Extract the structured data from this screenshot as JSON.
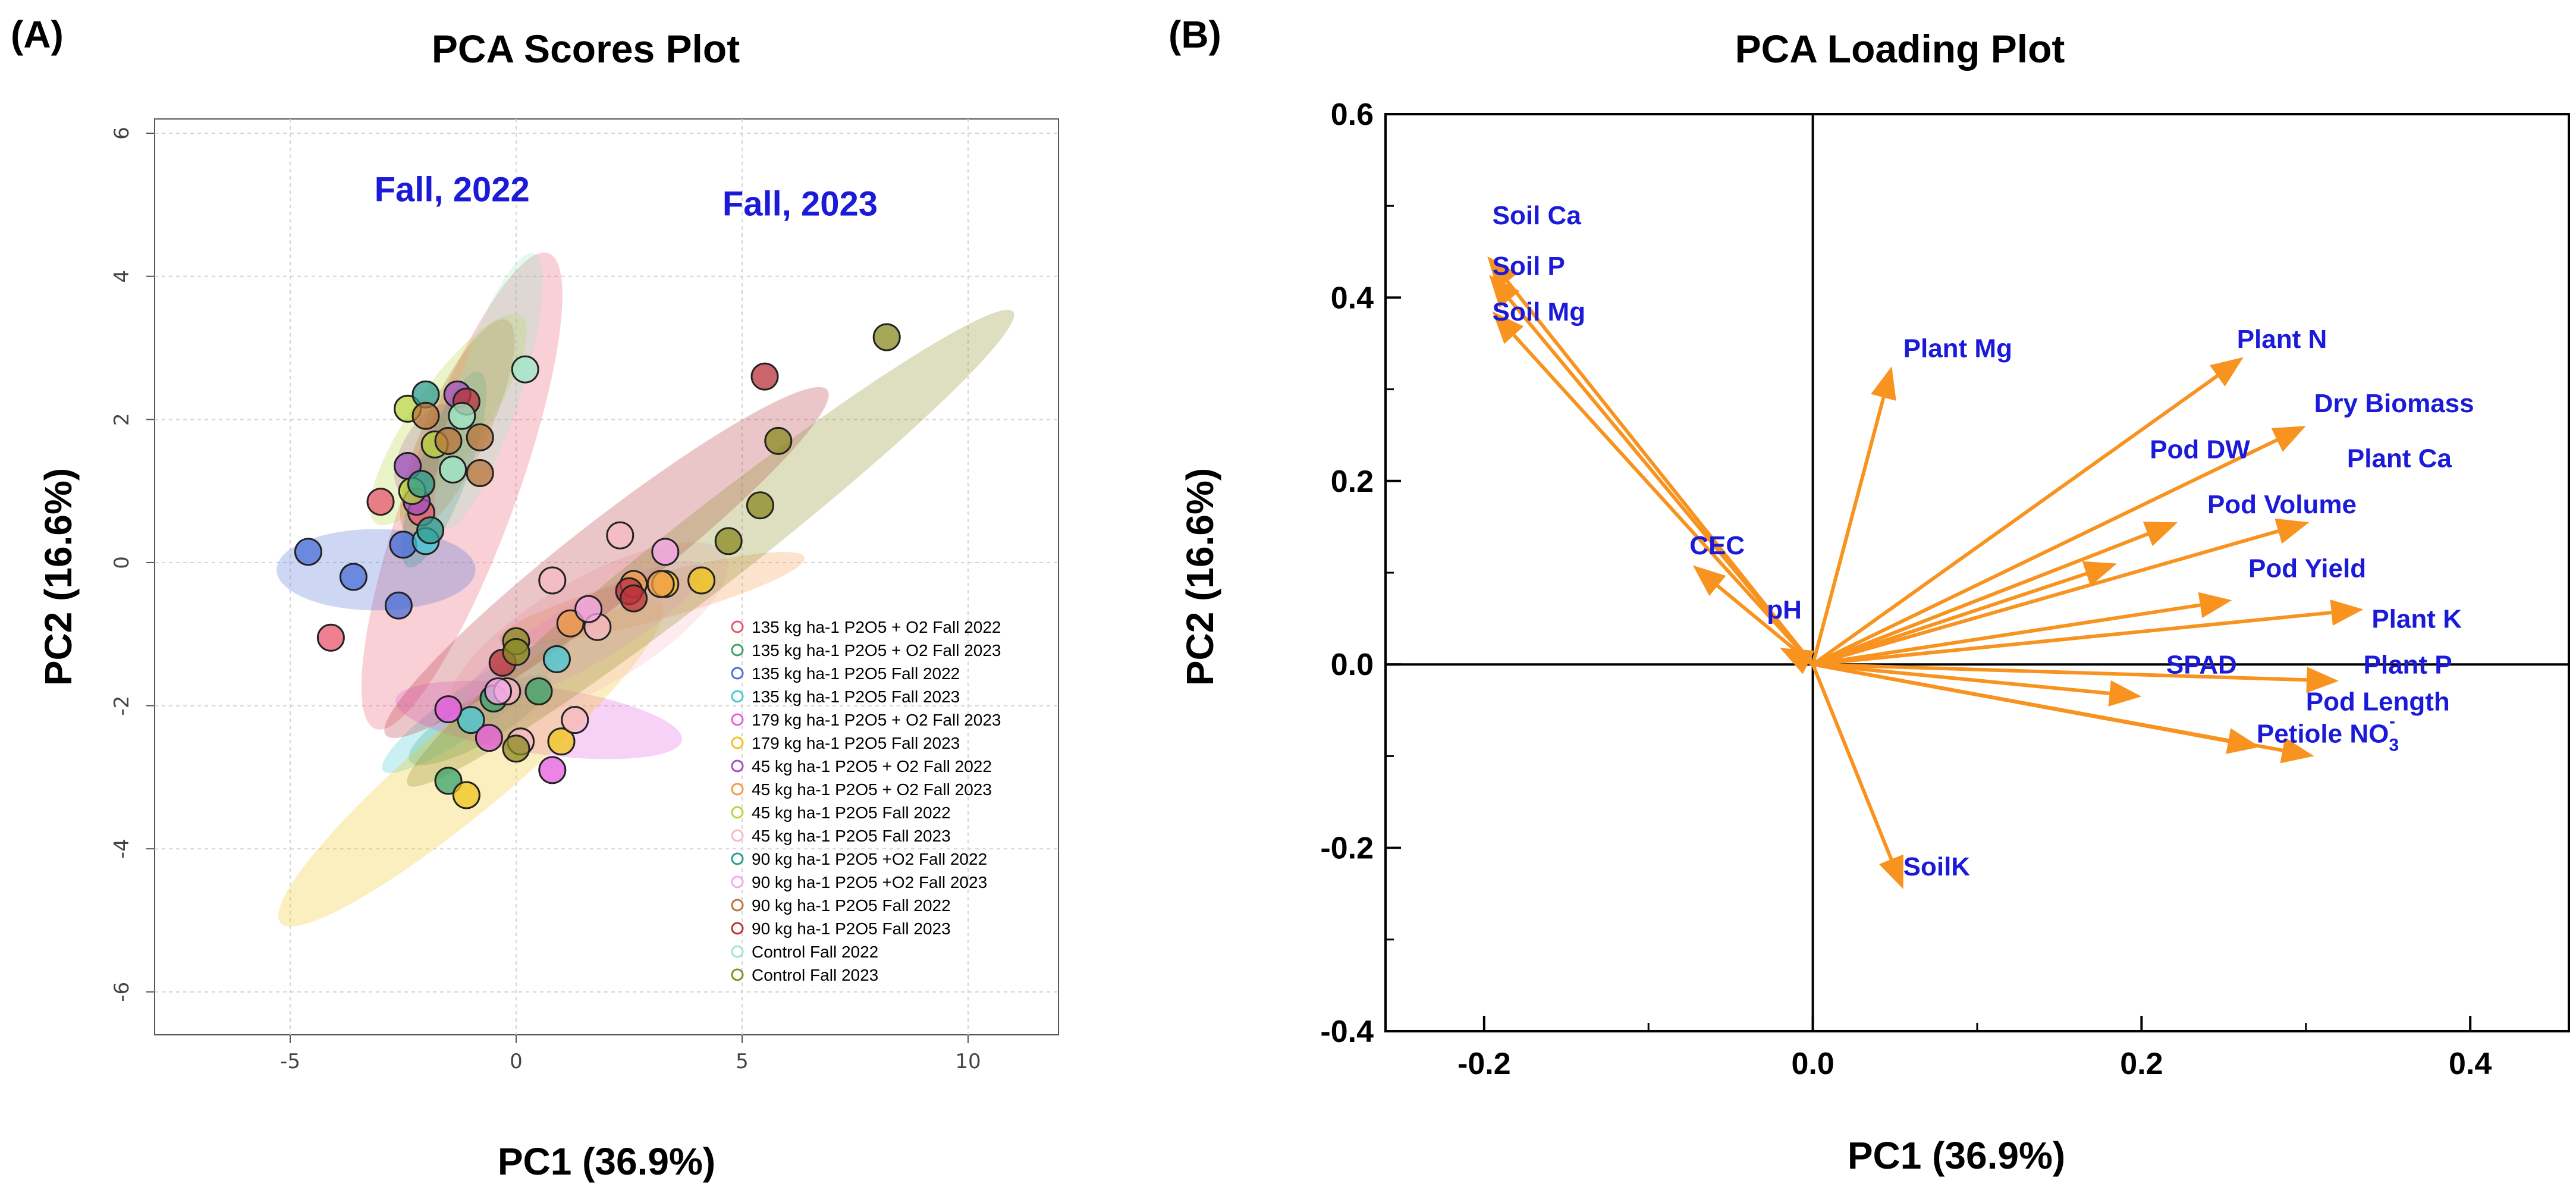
{
  "chart_data": [
    {
      "panel": "(A)",
      "type": "scatter",
      "title": "PCA Scores Plot",
      "xlabel": "PC1 (36.9%)",
      "ylabel": "PC2 (16.6%)",
      "xlim": [
        -8,
        12
      ],
      "ylim": [
        -6.6,
        6.2
      ],
      "xticks": [
        -5,
        0,
        5,
        10
      ],
      "yticks": [
        -6,
        -4,
        -2,
        0,
        2,
        4,
        6
      ],
      "grid": true,
      "annotations": [
        {
          "text": "Fall, 2022",
          "x": 0.3,
          "y": 5.05
        },
        {
          "text": "Fall, 2023",
          "x": 8.0,
          "y": 4.85
        }
      ],
      "legend_position": "bottom-right",
      "series": [
        {
          "name": "135 kg ha-1 P2O5 + O2 Fall 2022",
          "color": "#e8556d",
          "ellipse": {
            "cx": -1.2,
            "cy": 1.0,
            "rx": 5.6,
            "ry": 1.2,
            "angle": 70
          },
          "points": [
            [
              -3.0,
              0.85
            ],
            [
              -4.1,
              -1.05
            ],
            [
              -2.1,
              0.7
            ]
          ]
        },
        {
          "name": "135 kg ha-1 P2O5 + O2 Fall 2023",
          "color": "#3aa36b",
          "ellipse": {
            "cx": -0.8,
            "cy": -2.2,
            "rx": 1.8,
            "ry": 0.5,
            "angle": 30
          },
          "points": [
            [
              -1.5,
              -3.05
            ],
            [
              0.5,
              -1.8
            ],
            [
              -0.5,
              -1.9
            ]
          ]
        },
        {
          "name": "135 kg ha-1 P2O5 Fall 2022",
          "color": "#4a6fd8",
          "ellipse": {
            "cx": -3.1,
            "cy": -0.1,
            "rx": 2.2,
            "ry": 0.9,
            "angle": 0
          },
          "points": [
            [
              -4.6,
              0.15
            ],
            [
              -3.6,
              -0.2
            ],
            [
              -2.6,
              -0.6
            ],
            [
              -2.5,
              0.25
            ]
          ]
        },
        {
          "name": "135 kg ha-1 P2O5 Fall 2023",
          "color": "#46c8d8",
          "ellipse": {
            "cx": -0.9,
            "cy": -2.0,
            "rx": 2.5,
            "ry": 0.5,
            "angle": 35
          },
          "points": [
            [
              -1.0,
              -2.2
            ],
            [
              0.9,
              -1.35
            ],
            [
              -2.0,
              0.3
            ]
          ]
        },
        {
          "name": "179 kg ha-1 P2O5 + O2 Fall 2023",
          "color": "#e65be0",
          "ellipse": {
            "cx": 0.5,
            "cy": -2.2,
            "rx": 3.2,
            "ry": 0.75,
            "angle": -8
          },
          "points": [
            [
              -1.5,
              -2.05
            ],
            [
              0.8,
              -2.9
            ],
            [
              -0.6,
              -2.45
            ]
          ]
        },
        {
          "name": "179 kg ha-1 P2O5 Fall 2023",
          "color": "#f0c419",
          "ellipse": {
            "cx": -1.0,
            "cy": -2.8,
            "rx": 5.5,
            "ry": 1.0,
            "angle": 40
          },
          "points": [
            [
              -1.1,
              -3.25
            ],
            [
              3.3,
              -0.3
            ],
            [
              4.1,
              -0.25
            ],
            [
              1.0,
              -2.5
            ]
          ]
        },
        {
          "name": "45 kg ha-1 P2O5 + O2 Fall 2022",
          "color": "#a24fc2",
          "ellipse": {
            "cx": -2.0,
            "cy": 1.6,
            "rx": 1.1,
            "ry": 0.5,
            "angle": 60
          },
          "points": [
            [
              -1.3,
              2.35
            ],
            [
              -2.4,
              1.35
            ],
            [
              -2.2,
              0.85
            ]
          ]
        },
        {
          "name": "45 kg ha-1 P2O5 + O2 Fall 2023",
          "color": "#f29b4a",
          "ellipse": {
            "cx": 3.0,
            "cy": -0.5,
            "rx": 3.5,
            "ry": 0.5,
            "angle": 15
          },
          "points": [
            [
              1.2,
              -0.85
            ],
            [
              2.6,
              -0.3
            ],
            [
              3.2,
              -0.3
            ]
          ]
        },
        {
          "name": "45 kg ha-1 P2O5 Fall 2022",
          "color": "#b8d43c",
          "ellipse": {
            "cx": -1.5,
            "cy": 2.0,
            "rx": 2.8,
            "ry": 0.8,
            "angle": 55
          },
          "points": [
            [
              -2.4,
              2.15
            ],
            [
              -1.8,
              1.65
            ],
            [
              -2.3,
              1.0
            ]
          ]
        },
        {
          "name": "45 kg ha-1 P2O5 Fall 2023",
          "color": "#f7b8c4",
          "ellipse": {
            "cx": 1.6,
            "cy": -1.0,
            "rx": 3.5,
            "ry": 1.2,
            "angle": 30
          },
          "points": [
            [
              2.3,
              0.38
            ],
            [
              0.8,
              -0.25
            ],
            [
              1.8,
              -0.9
            ],
            [
              1.3,
              -2.2
            ],
            [
              -0.2,
              -1.8
            ],
            [
              0.1,
              -2.5
            ]
          ]
        },
        {
          "name": "90 kg ha-1 P2O5 +O2 Fall 2022",
          "color": "#2d9c8e",
          "ellipse": {
            "cx": -1.6,
            "cy": 1.3,
            "rx": 2.3,
            "ry": 0.55,
            "angle": 70
          },
          "points": [
            [
              -2.0,
              2.35
            ],
            [
              -1.9,
              0.45
            ],
            [
              -2.1,
              1.1
            ]
          ]
        },
        {
          "name": "90 kg ha-1 P2O5 +O2 Fall 2023",
          "color": "#f7a8ec",
          "ellipse": {
            "cx": 1.5,
            "cy": -1.0,
            "rx": 3.0,
            "ry": 0.7,
            "angle": 30
          },
          "points": [
            [
              1.6,
              -0.65
            ],
            [
              3.3,
              0.15
            ],
            [
              -0.4,
              -1.8
            ]
          ]
        },
        {
          "name": "90 kg ha-1 P2O5 Fall 2022",
          "color": "#b8763a",
          "ellipse": {
            "cx": -1.3,
            "cy": 1.9,
            "rx": 2.6,
            "ry": 0.7,
            "angle": 65
          },
          "points": [
            [
              -0.8,
              1.75
            ],
            [
              -0.8,
              1.25
            ],
            [
              -2.0,
              2.05
            ],
            [
              -1.5,
              1.7
            ]
          ]
        },
        {
          "name": "90 kg ha-1 P2O5 Fall 2023",
          "color": "#b8323a",
          "ellipse": {
            "cx": 2.0,
            "cy": 0.0,
            "rx": 6.2,
            "ry": 0.9,
            "angle": 38
          },
          "points": [
            [
              5.5,
              2.6
            ],
            [
              2.5,
              -0.4
            ],
            [
              2.6,
              -0.5
            ],
            [
              -0.3,
              -1.4
            ],
            [
              -1.1,
              2.25
            ]
          ]
        },
        {
          "name": "Control Fall 2022",
          "color": "#9de8c8",
          "ellipse": {
            "cx": -0.6,
            "cy": 2.4,
            "rx": 3.2,
            "ry": 0.7,
            "angle": 72
          },
          "points": [
            [
              0.2,
              2.7
            ],
            [
              -1.2,
              2.05
            ],
            [
              -1.4,
              1.3
            ]
          ]
        },
        {
          "name": "Control Fall 2023",
          "color": "#8a8a22",
          "ellipse": {
            "cx": 4.3,
            "cy": 0.2,
            "rx": 8.5,
            "ry": 0.85,
            "angle": 38
          },
          "points": [
            [
              8.2,
              3.15
            ],
            [
              5.8,
              1.7
            ],
            [
              5.4,
              0.8
            ],
            [
              4.7,
              0.3
            ],
            [
              0.0,
              -1.1
            ],
            [
              0.0,
              -1.25
            ],
            [
              0.0,
              -2.6
            ]
          ]
        }
      ]
    },
    {
      "panel": "(B)",
      "type": "scatter",
      "subtype": "loading-vectors",
      "title": "PCA Loading Plot",
      "xlabel": "PC1 (36.9%)",
      "ylabel": "PC2 (16.6%)",
      "xlim": [
        -0.26,
        0.46
      ],
      "ylim": [
        -0.4,
        0.6
      ],
      "xticks": [
        -0.2,
        0.0,
        0.2,
        0.4
      ],
      "xtick_labels": [
        "-0.2",
        "0.0",
        "0.2",
        "0.4"
      ],
      "yticks": [
        -0.4,
        -0.2,
        0.0,
        0.2,
        0.4,
        0.6
      ],
      "ytick_labels": [
        "-0.4",
        "-0.2",
        "0.0",
        "0.2",
        "0.4",
        "0.6"
      ],
      "grid": false,
      "vectors": [
        {
          "label": "Soil Ca",
          "x": -0.198,
          "y": 0.445,
          "lx": -0.195,
          "ly": 0.48
        },
        {
          "label": "Soil P",
          "x": -0.197,
          "y": 0.425,
          "lx": -0.195,
          "ly": 0.425
        },
        {
          "label": "Soil Mg",
          "x": -0.195,
          "y": 0.385,
          "lx": -0.195,
          "ly": 0.375
        },
        {
          "label": "Plant Mg",
          "x": 0.048,
          "y": 0.325,
          "lx": 0.055,
          "ly": 0.335
        },
        {
          "label": "Plant N",
          "x": 0.262,
          "y": 0.335,
          "lx": 0.258,
          "ly": 0.345
        },
        {
          "label": "Dry Biomass",
          "x": 0.3,
          "y": 0.26,
          "lx": 0.305,
          "ly": 0.275
        },
        {
          "label": "Plant Ca",
          "x": 0.302,
          "y": 0.155,
          "lx": 0.325,
          "ly": 0.215
        },
        {
          "label": "Pod DW",
          "x": 0.185,
          "y": 0.11,
          "lx": 0.205,
          "ly": 0.225
        },
        {
          "label": "Pod Volume",
          "x": 0.222,
          "y": 0.155,
          "lx": 0.24,
          "ly": 0.165
        },
        {
          "label": "Pod Yield",
          "x": 0.255,
          "y": 0.07,
          "lx": 0.265,
          "ly": 0.095
        },
        {
          "label": "Plant K",
          "x": 0.335,
          "y": 0.06,
          "lx": 0.34,
          "ly": 0.04
        },
        {
          "label": "Plant P",
          "x": 0.32,
          "y": -0.018,
          "lx": 0.335,
          "ly": -0.01
        },
        {
          "label": "SPAD",
          "x": 0.2,
          "y": -0.035,
          "lx": 0.215,
          "ly": -0.01
        },
        {
          "label": "Pod Length",
          "x": 0.305,
          "y": -0.1,
          "lx": 0.3,
          "ly": -0.05
        },
        {
          "label": "Petiole NO3-",
          "x": 0.272,
          "y": -0.09,
          "lx": 0.27,
          "ly": -0.085
        },
        {
          "label": "SoilK",
          "x": 0.055,
          "y": -0.245,
          "lx": 0.055,
          "ly": -0.23
        },
        {
          "label": "CEC",
          "x": -0.073,
          "y": 0.108,
          "lx": -0.075,
          "ly": 0.12
        },
        {
          "label": "pH",
          "x": -0.02,
          "y": 0.018,
          "lx": -0.028,
          "ly": 0.05
        }
      ]
    }
  ]
}
